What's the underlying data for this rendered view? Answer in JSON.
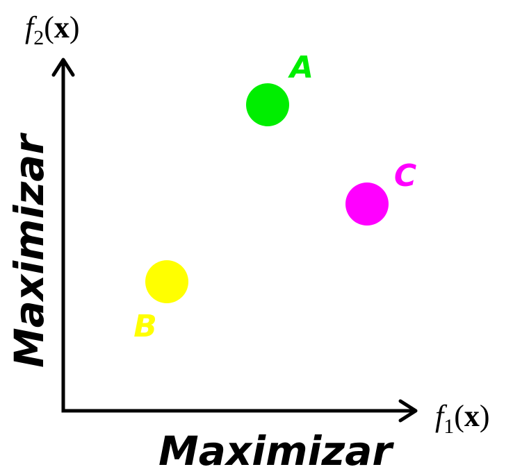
{
  "axes": {
    "x_function": "f",
    "x_subscript": "1",
    "x_open": "(",
    "x_vector": "x",
    "x_close": ")",
    "y_function": "f",
    "y_subscript": "2",
    "y_open": "(",
    "y_vector": "x",
    "y_close": ")",
    "x_direction_label": "Maximizar",
    "y_direction_label": "Maximizar"
  },
  "points": [
    {
      "label": "A",
      "color": "#00ee00"
    },
    {
      "label": "B",
      "color": "#ffff00"
    },
    {
      "label": "C",
      "color": "#ff00ff"
    }
  ],
  "colors": {
    "axis": "#000000",
    "background": "#ffffff"
  }
}
